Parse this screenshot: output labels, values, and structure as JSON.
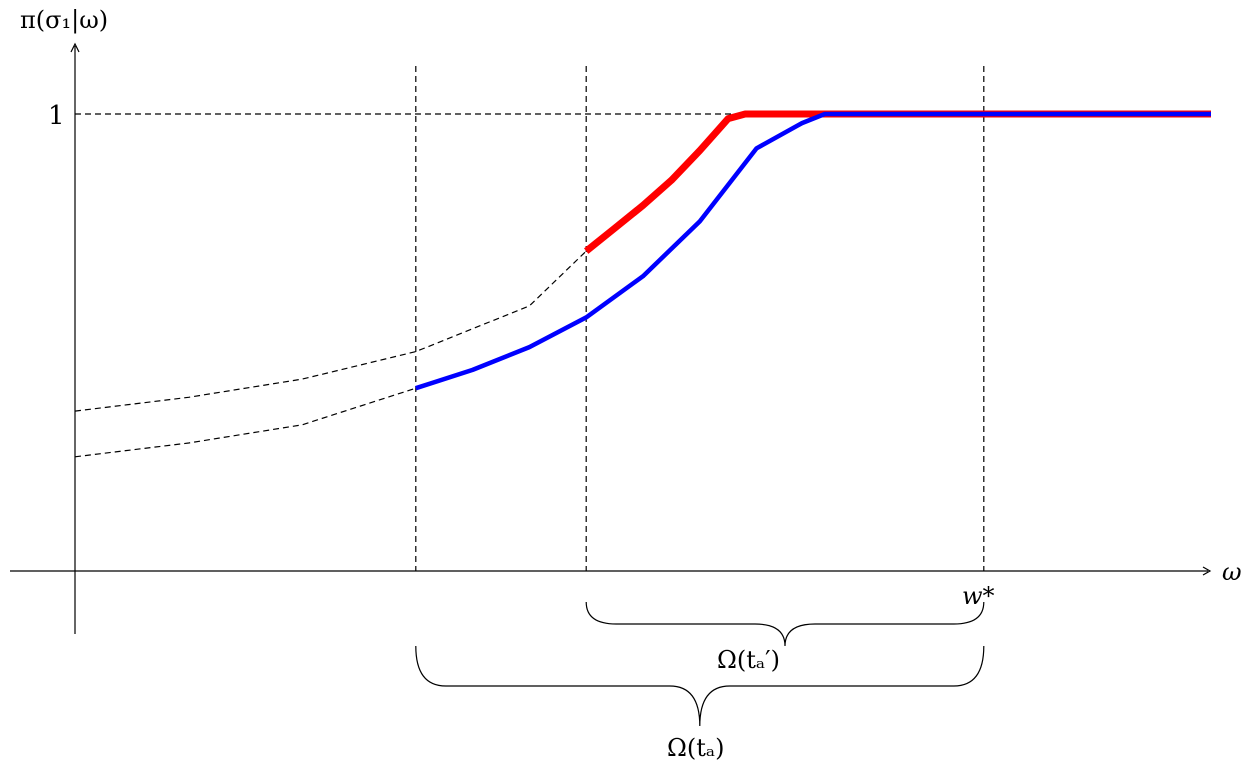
{
  "labels": {
    "y_axis": "π(σ₁|ω)",
    "x_axis": "ω",
    "y_tick_one": "1",
    "w_star": "w*",
    "omega_ta_prime": "Ω(tₐ′)",
    "omega_ta": "Ω(tₐ)"
  },
  "colors": {
    "red_curve": "#ff0000",
    "blue_curve": "#0000ff",
    "axis": "#000000",
    "dashed": "#000000"
  },
  "chart_data": {
    "type": "line",
    "series": [
      {
        "color": "#ff0000",
        "x": [
          4.5,
          4.75,
          5.0,
          5.25,
          5.5,
          5.75,
          5.9,
          6.0,
          8.0,
          10.0
        ],
        "y": [
          0.7,
          0.75,
          0.8,
          0.855,
          0.92,
          0.99,
          1.0,
          1.0,
          1.0,
          1.0
        ]
      },
      {
        "color": "#0000ff",
        "x": [
          3.0,
          3.5,
          4.0,
          4.5,
          5.0,
          5.5,
          6.0,
          6.4,
          6.6,
          7.0,
          8.0,
          10.0
        ],
        "y": [
          0.4,
          0.44,
          0.49,
          0.555,
          0.645,
          0.765,
          0.925,
          0.98,
          1.0,
          1.0,
          1.0,
          1.0
        ]
      }
    ],
    "dashed_extensions": [
      {
        "x": [
          0.0,
          1.0,
          2.0,
          3.0,
          4.0,
          4.5
        ],
        "y": [
          0.35,
          0.38,
          0.42,
          0.48,
          0.58,
          0.7
        ]
      },
      {
        "x": [
          0.0,
          1.0,
          2.0,
          3.0
        ],
        "y": [
          0.25,
          0.28,
          0.32,
          0.4
        ]
      }
    ],
    "vertical_dashed_x": [
      3.0,
      4.5,
      8.0
    ],
    "horizontal_dashed_y": 1.0,
    "brackets": [
      {
        "from": 4.5,
        "to": 8.0,
        "label_key": "omega_ta_prime",
        "color": "#ff0000"
      },
      {
        "from": 3.0,
        "to": 8.0,
        "label_key": "omega_ta",
        "color": "#0000ff"
      }
    ],
    "xlim": [
      0,
      10
    ],
    "ylim": [
      0,
      1
    ],
    "grid": false
  }
}
